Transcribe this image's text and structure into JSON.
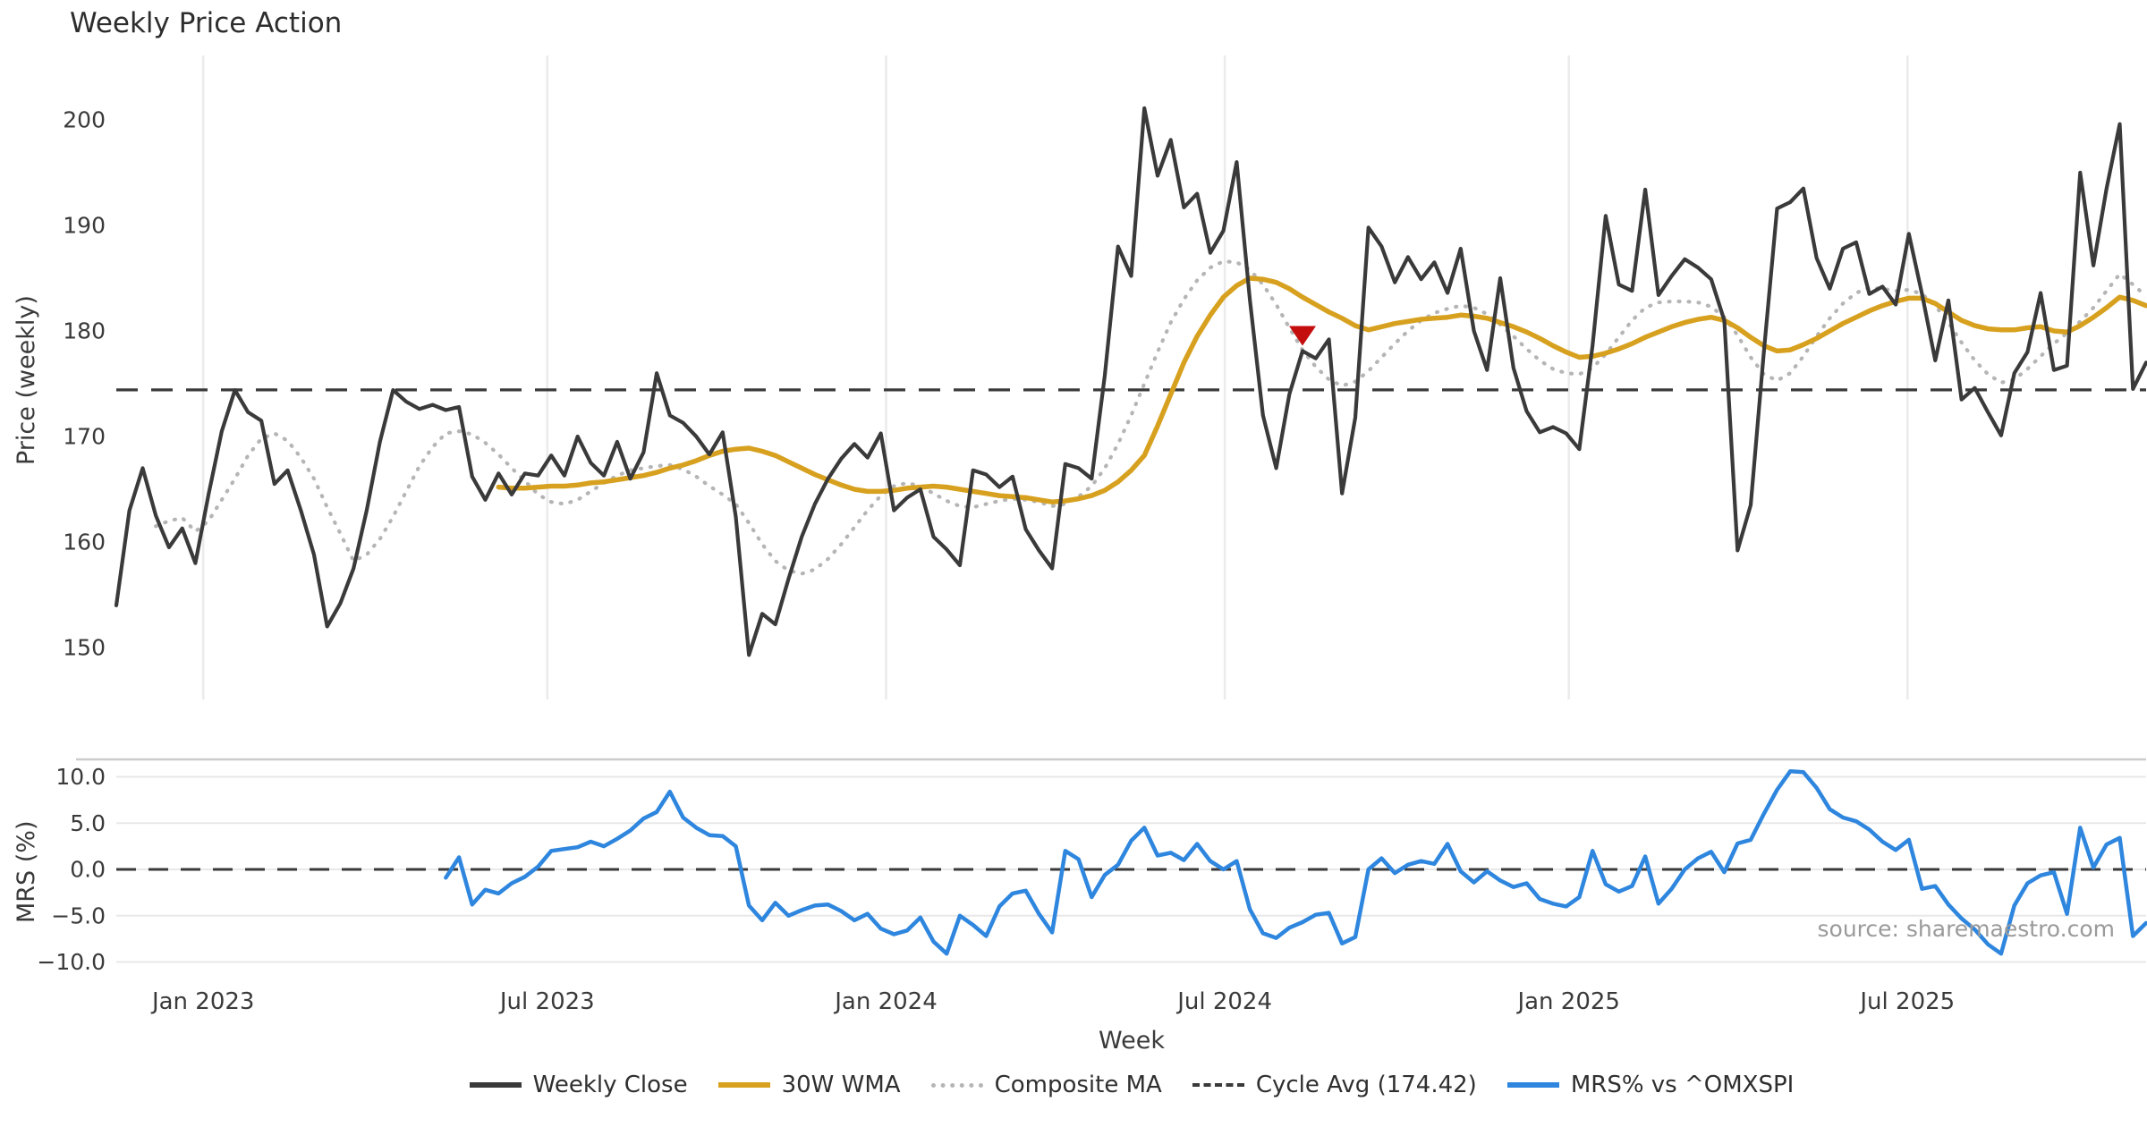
{
  "title": "Weekly Price Action",
  "xlabel": "Week",
  "ylabel_top": "Price (weekly)",
  "ylabel_bottom": "MRS (%)",
  "source_note": "source: sharemaestro.com",
  "colors": {
    "weekly_close": "#3a3a3a",
    "wma_30w": "#d7a11f",
    "composite_ma": "#b5b5b5",
    "cycle_avg": "#3a3a3a",
    "mrs": "#2e86de",
    "sell_marker": "#c40d0d",
    "grid_vertical": "#ebebeb",
    "grid_horizontal": "#e8e8e8",
    "panel_spine": "#cccccc",
    "tick_text": "#3a3a3a"
  },
  "legend": [
    {
      "label": "Weekly Close",
      "style": "solid",
      "color": "#3a3a3a"
    },
    {
      "label": "30W WMA",
      "style": "solid",
      "color": "#d7a11f"
    },
    {
      "label": "Composite MA",
      "style": "dotted",
      "color": "#b5b5b5"
    },
    {
      "label": "Cycle Avg (174.42)",
      "style": "dashed",
      "color": "#3a3a3a"
    },
    {
      "label": "MRS% vs ^OMXSPI",
      "style": "solid",
      "color": "#2e86de"
    }
  ],
  "chart_data": {
    "type": "line",
    "title": "Weekly Price Action",
    "xlabel": "Week",
    "n_weeks": 155,
    "xticks": [
      {
        "week": 6.6,
        "label": "Jan 2023"
      },
      {
        "week": 32.7,
        "label": "Jul 2023"
      },
      {
        "week": 58.4,
        "label": "Jan 2024"
      },
      {
        "week": 84.1,
        "label": "Jul 2024"
      },
      {
        "week": 110.2,
        "label": "Jan 2025"
      },
      {
        "week": 135.9,
        "label": "Jul 2025"
      }
    ],
    "panels": [
      {
        "name": "price",
        "ylabel": "Price (weekly)",
        "ylim": [
          147.8,
          204.5
        ],
        "yticks": [
          {
            "v": 150,
            "label": "150"
          },
          {
            "v": 160,
            "label": "160"
          },
          {
            "v": 170,
            "label": "170"
          },
          {
            "v": 180,
            "label": "180"
          },
          {
            "v": 190,
            "label": "190"
          },
          {
            "v": 200,
            "label": "200"
          }
        ],
        "grid": "vertical",
        "cycle_avg": 174.42,
        "sell_marker": {
          "week": 90,
          "price": 178.6
        },
        "series": [
          {
            "name": "Weekly Close",
            "key": "weekly_close",
            "values": [
              154,
              163,
              167,
              162.5,
              159.5,
              161.3,
              158,
              164.5,
              170.5,
              174.4,
              172.3,
              171.5,
              165.5,
              166.8,
              163,
              158.8,
              152,
              154.2,
              157.5,
              163,
              169.5,
              174.4,
              173.3,
              172.6,
              173,
              172.5,
              172.8,
              166.2,
              164,
              166.5,
              164.5,
              166.5,
              166.3,
              168.2,
              166.3,
              170,
              167.5,
              166.3,
              169.5,
              166,
              168.5,
              176,
              172,
              171.3,
              170,
              168.3,
              170.4,
              162.4,
              149.3,
              153.2,
              152.2,
              156.5,
              160.5,
              163.6,
              166,
              167.9,
              169.3,
              168,
              170.3,
              163,
              164.2,
              165,
              160.5,
              159.3,
              157.8,
              166.8,
              166.4,
              165.2,
              166.2,
              161.2,
              159.2,
              157.5,
              167.4,
              167,
              166,
              175.8,
              188,
              185.2,
              201.1,
              194.7,
              198.1,
              191.7,
              193,
              187.4,
              189.5,
              196,
              183,
              172,
              167,
              174,
              178.1,
              177.4,
              179.2,
              164.6,
              171.8,
              189.8,
              188,
              184.6,
              187,
              184.9,
              186.5,
              183.6,
              187.8,
              180,
              176.3,
              185,
              176.5,
              172.4,
              170.4,
              170.9,
              170.3,
              168.8,
              178.6,
              190.9,
              184.4,
              183.8,
              193.4,
              183.4,
              185.2,
              186.8,
              186,
              184.9,
              181,
              159.2,
              163.5,
              178,
              191.6,
              192.2,
              193.5,
              186.9,
              184,
              187.8,
              188.4,
              183.5,
              184.2,
              182.5,
              189.2,
              183.5,
              177.2,
              182.9,
              173.5,
              174.6,
              172.3,
              170.1,
              176,
              178,
              183.6,
              176.3,
              176.7,
              195,
              186.2,
              193.5,
              199.6,
              174.5,
              177
            ]
          },
          {
            "name": "30W WMA",
            "key": "wma_30w",
            "values": [
              null,
              null,
              null,
              null,
              null,
              null,
              null,
              null,
              null,
              null,
              null,
              null,
              null,
              null,
              null,
              null,
              null,
              null,
              null,
              null,
              null,
              null,
              null,
              null,
              null,
              null,
              null,
              null,
              null,
              165.2,
              165.1,
              165.1,
              165.2,
              165.3,
              165.3,
              165.4,
              165.6,
              165.7,
              165.9,
              166.1,
              166.3,
              166.6,
              167,
              167.3,
              167.7,
              168.2,
              168.6,
              168.8,
              168.9,
              168.6,
              168.2,
              167.6,
              167,
              166.4,
              165.9,
              165.4,
              165,
              164.8,
              164.8,
              164.9,
              165.1,
              165.2,
              165.3,
              165.2,
              165,
              164.8,
              164.6,
              164.4,
              164.3,
              164.2,
              164,
              163.8,
              163.9,
              164.1,
              164.4,
              164.9,
              165.7,
              166.8,
              168.2,
              171,
              174,
              177,
              179.5,
              181.5,
              183.2,
              184.3,
              185,
              184.9,
              184.6,
              184,
              183.2,
              182.5,
              181.8,
              181.2,
              180.5,
              180.1,
              180.4,
              180.7,
              180.9,
              181.1,
              181.2,
              181.3,
              181.5,
              181.4,
              181.2,
              180.8,
              180.4,
              179.9,
              179.3,
              178.6,
              178,
              177.5,
              177.6,
              177.9,
              178.3,
              178.8,
              179.4,
              179.9,
              180.4,
              180.8,
              181.1,
              181.3,
              181,
              180.3,
              179.4,
              178.6,
              178.1,
              178.2,
              178.7,
              179.3,
              180,
              180.7,
              181.3,
              181.9,
              182.4,
              182.8,
              183.1,
              183.1,
              182.6,
              181.8,
              181,
              180.5,
              180.2,
              180.1,
              180.1,
              180.3,
              180.4,
              180,
              179.9,
              180.5,
              181.3,
              182.2,
              183.2,
              182.9,
              182.4
            ]
          },
          {
            "name": "Composite MA",
            "key": "composite_ma",
            "values": [
              null,
              null,
              null,
              161.5,
              162,
              162.3,
              161,
              162,
              164,
              166,
              168.2,
              169.8,
              170.3,
              169.6,
              168,
              166,
              163.3,
              160.8,
              158.2,
              158.8,
              160.3,
              162.4,
              164.8,
              167.2,
              169,
              170.3,
              170.5,
              170.2,
              169.4,
              168.3,
              167,
              165.8,
              164.5,
              163.8,
              163.6,
              164,
              164.8,
              165.6,
              166.3,
              166.8,
              167,
              167.2,
              167.3,
              166.9,
              166.2,
              165.3,
              164.5,
              163.6,
              161.8,
              159.8,
              158.2,
              157.3,
              157,
              157.4,
              158.4,
              159.8,
              161.4,
              163,
              164.4,
              165.3,
              165.6,
              165.3,
              164.6,
              163.9,
              163.4,
              163.3,
              163.6,
              163.9,
              164.1,
              164,
              163.8,
              163.4,
              163.6,
              164.3,
              165.3,
              167,
              169.3,
              172,
              175,
              178,
              180.8,
              183,
              184.8,
              186,
              186.6,
              186.5,
              185.8,
              184.4,
              182.5,
              180.3,
              178.2,
              176.6,
              175.4,
              174.8,
              175.2,
              176.2,
              177.5,
              178.8,
              180,
              181,
              181.7,
              182.1,
              182.4,
              182.2,
              181.6,
              180.6,
              179.5,
              178.3,
              177.2,
              176.4,
              176,
              175.9,
              176.5,
              177.8,
              179.4,
              181,
              182.2,
              182.7,
              182.8,
              182.8,
              182.7,
              182.3,
              181.3,
              179.6,
              177.5,
              175.9,
              175.3,
              176,
              177.6,
              179.5,
              181.2,
              182.6,
              183.6,
              184.1,
              184,
              183.8,
              183.9,
              183.5,
              182.4,
              180.8,
              178.9,
              177.2,
              175.9,
              175.1,
              175.4,
              176.4,
              177.6,
              178.8,
              179.8,
              180.9,
              182.2,
              183.8,
              185.4,
              184.4,
              183.3
            ]
          }
        ]
      },
      {
        "name": "mrs",
        "ylabel": "MRS (%)",
        "ylim": [
          -12,
          11.9
        ],
        "yticks": [
          {
            "v": 10,
            "label": "10.0"
          },
          {
            "v": 5,
            "label": "5.0"
          },
          {
            "v": 0,
            "label": "0.0"
          },
          {
            "v": -5,
            "label": "−5.0"
          },
          {
            "v": -10,
            "label": "−10.0"
          }
        ],
        "grid": "horizontal",
        "zero_line_dashed": true,
        "series": [
          {
            "name": "MRS% vs ^OMXSPI",
            "key": "mrs",
            "values": [
              null,
              null,
              null,
              null,
              null,
              null,
              null,
              null,
              null,
              null,
              null,
              null,
              null,
              null,
              null,
              null,
              null,
              null,
              null,
              null,
              null,
              null,
              null,
              null,
              null,
              -0.9,
              1.3,
              -3.8,
              -2.2,
              -2.6,
              -1.5,
              -0.8,
              0.3,
              2,
              2.2,
              2.4,
              3,
              2.5,
              3.3,
              4.2,
              5.5,
              6.2,
              8.4,
              5.6,
              4.5,
              3.7,
              3.6,
              2.5,
              -3.9,
              -5.5,
              -3.6,
              -5,
              -4.4,
              -3.9,
              -3.8,
              -4.5,
              -5.5,
              -4.8,
              -6.4,
              -7,
              -6.6,
              -5.2,
              -7.8,
              -9.1,
              -5,
              -6,
              -7.2,
              -4,
              -2.6,
              -2.3,
              -4.8,
              -6.8,
              2,
              1.1,
              -3,
              -0.6,
              0.5,
              3.1,
              4.5,
              1.5,
              1.8,
              1,
              2.75,
              0.9,
              0,
              0.9,
              -4.3,
              -6.9,
              -7.4,
              -6.3,
              -5.7,
              -4.9,
              -4.7,
              -8,
              -7.3,
              0,
              1.2,
              -0.4,
              0.5,
              0.9,
              0.6,
              2.75,
              -0.2,
              -1.4,
              -0.2,
              -1.2,
              -1.9,
              -1.5,
              -3.2,
              -3.7,
              -4,
              -3,
              2,
              -1.6,
              -2.4,
              -1.8,
              1.4,
              -3.7,
              -2.1,
              0,
              1.2,
              1.9,
              -0.3,
              2.8,
              3.2,
              6,
              8.6,
              10.6,
              10.5,
              8.8,
              6.5,
              5.6,
              5.2,
              4.3,
              3,
              2.1,
              3.2,
              -2.1,
              -1.8,
              -3.8,
              -5.3,
              -6.5,
              -8.1,
              -9.1,
              -3.9,
              -1.5,
              -0.65,
              -0.3,
              -4.8,
              4.5,
              0.2,
              2.7,
              3.4,
              -7.2,
              -5.8
            ]
          }
        ]
      }
    ]
  }
}
